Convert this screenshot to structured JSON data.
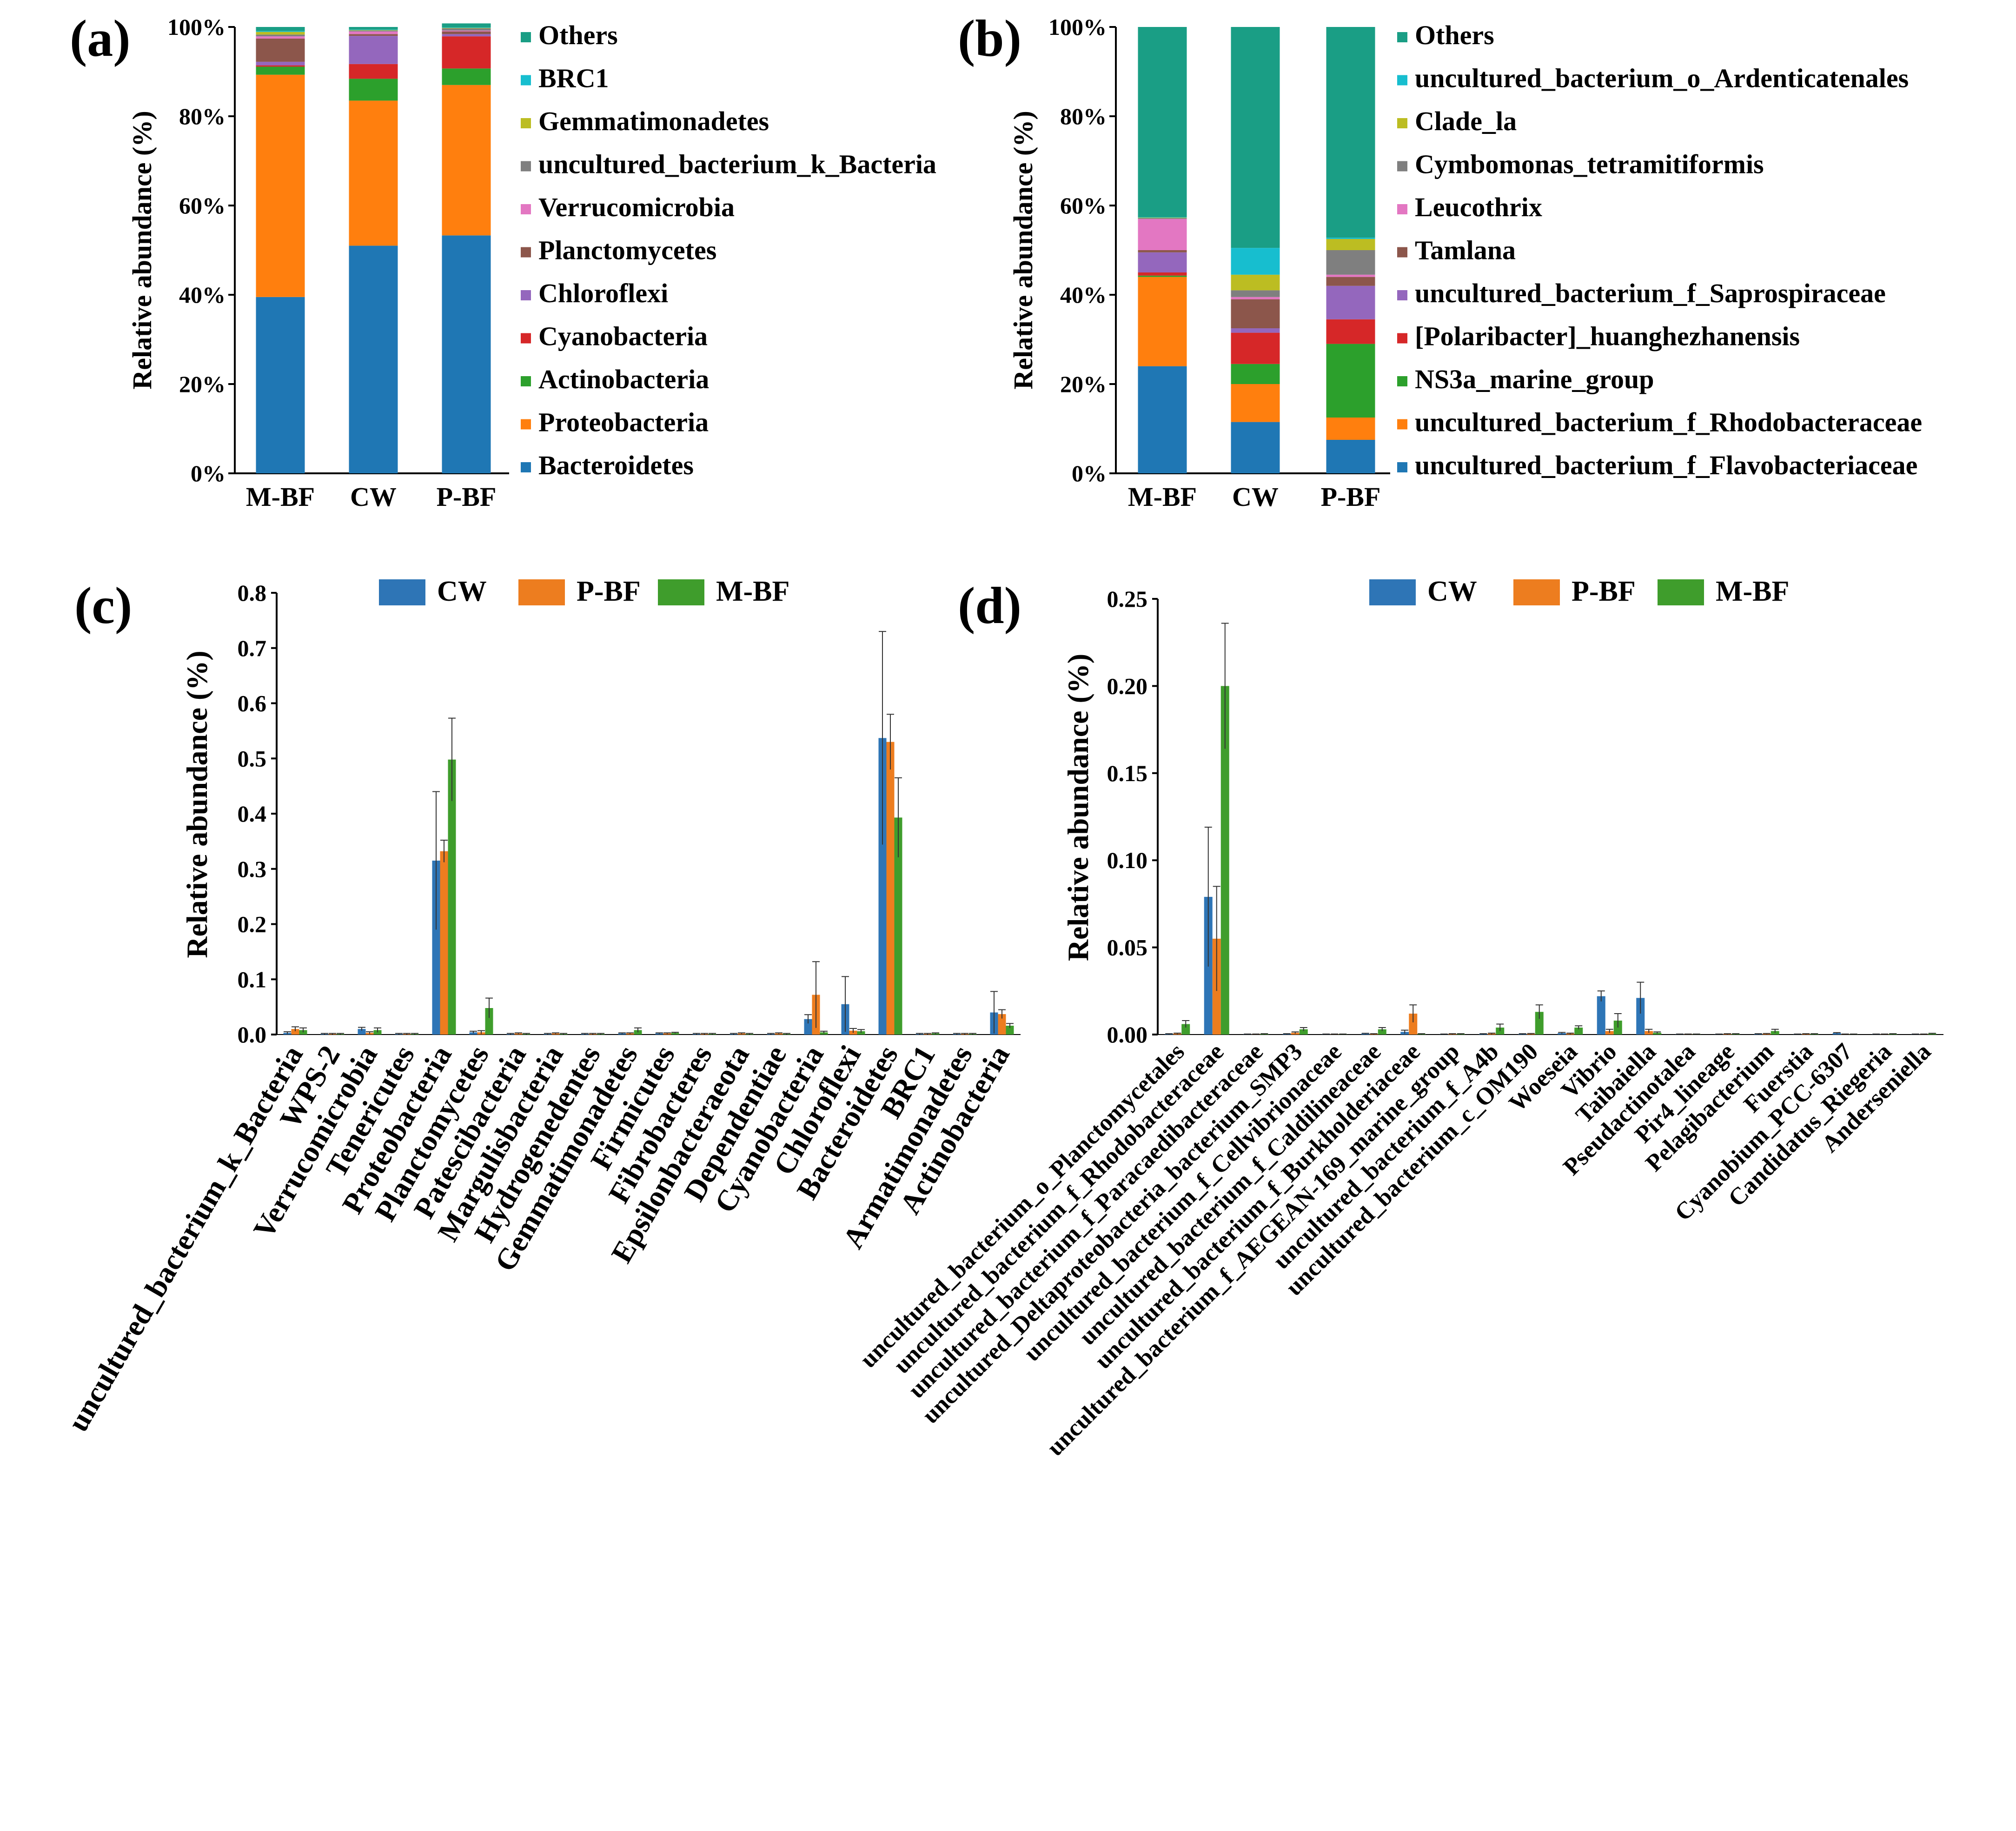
{
  "colors": {
    "Bacteroidetes": "#1f77b4",
    "Proteobacteria": "#ff7f0e",
    "Actinobacteria": "#2ca02c",
    "Cyanobacteria": "#d62728",
    "Chloroflexi": "#9467bd",
    "Planctomycetes": "#8c564b",
    "Verrucomicrobia": "#e377c2",
    "uncultured": "#7f7f7f",
    "Gemmatimonadetes": "#bcbd22",
    "BRC1": "#17becf",
    "Others": "#1a9e85",
    "CW": "#2e75b6",
    "P-BF": "#ed7d1f",
    "M-BF": "#3f9d2c"
  },
  "chart_data": [
    {
      "panel": "(a)",
      "type": "bar",
      "stacked": true,
      "categories": [
        "M-BF",
        "CW",
        "P-BF"
      ],
      "ylabel": "Relative abundance (%)",
      "yticks": [
        "0%",
        "20%",
        "40%",
        "60%",
        "80%",
        "100%"
      ],
      "ylim": [
        0,
        100
      ],
      "series": [
        {
          "name": "Bacteroidetes",
          "color_key": "Bacteroidetes",
          "values": [
            39.5,
            51.0,
            53.3
          ]
        },
        {
          "name": "Proteobacteria",
          "color_key": "Proteobacteria",
          "values": [
            49.8,
            32.5,
            33.7
          ]
        },
        {
          "name": "Actinobacteria",
          "color_key": "Actinobacteria",
          "values": [
            1.8,
            4.9,
            3.7
          ]
        },
        {
          "name": "Cyanobacteria",
          "color_key": "Cyanobacteria",
          "values": [
            0.3,
            3.3,
            7.2
          ]
        },
        {
          "name": "Chloroflexi",
          "color_key": "Chloroflexi",
          "values": [
            0.8,
            6.3,
            0.5
          ]
        },
        {
          "name": "Planctomycetes",
          "color_key": "Planctomycetes",
          "values": [
            5.2,
            0.4,
            0.6
          ]
        },
        {
          "name": "Verrucomicrobia",
          "color_key": "Verrucomicrobia",
          "values": [
            0.5,
            0.6,
            0.2
          ]
        },
        {
          "name": "uncultured_bacterium_k_Bacteria",
          "color_key": "uncultured",
          "values": [
            0.4,
            0.2,
            0.5
          ]
        },
        {
          "name": "Gemmatimonadetes",
          "color_key": "Gemmatimonadetes",
          "values": [
            0.6,
            0.1,
            0.1
          ]
        },
        {
          "name": "BRC1",
          "color_key": "BRC1",
          "values": [
            0.2,
            0.1,
            0.1
          ]
        },
        {
          "name": "Others",
          "color_key": "Others",
          "values": [
            0.9,
            0.6,
            0.9
          ]
        }
      ]
    },
    {
      "panel": "(b)",
      "type": "bar",
      "stacked": true,
      "categories": [
        "M-BF",
        "CW",
        "P-BF"
      ],
      "ylabel": "Relative abundance (%)",
      "yticks": [
        "0%",
        "20%",
        "40%",
        "60%",
        "80%",
        "100%"
      ],
      "ylim": [
        0,
        100
      ],
      "series": [
        {
          "name": "uncultured_bacterium_f_Flavobacteriaceae",
          "color_key": "Bacteroidetes",
          "values": [
            24.0,
            11.5,
            7.5
          ]
        },
        {
          "name": "uncultured_bacterium_f_Rhodobacteraceae",
          "color_key": "Proteobacteria",
          "values": [
            20.0,
            8.5,
            5.0
          ]
        },
        {
          "name": "NS3a_marine_group",
          "color_key": "Actinobacteria",
          "values": [
            0.3,
            4.5,
            16.5
          ]
        },
        {
          "name": "[Polaribacter]_huanghezhanensis",
          "color_key": "Cyanobacteria",
          "values": [
            0.7,
            7.0,
            5.5
          ]
        },
        {
          "name": "uncultured_bacterium_f_Saprospiraceae",
          "color_key": "Chloroflexi",
          "values": [
            4.5,
            1.0,
            7.5
          ]
        },
        {
          "name": "Tamlana",
          "color_key": "Planctomycetes",
          "values": [
            0.5,
            6.5,
            2.0
          ]
        },
        {
          "name": "Leucothrix",
          "color_key": "Verrucomicrobia",
          "values": [
            7.0,
            0.5,
            0.5
          ]
        },
        {
          "name": "Cymbomonas_tetramitiformis",
          "color_key": "uncultured",
          "values": [
            0.2,
            1.5,
            5.5
          ]
        },
        {
          "name": "Clade_la",
          "color_key": "Gemmatimonadetes",
          "values": [
            0.1,
            3.5,
            2.5
          ]
        },
        {
          "name": "uncultured_bacterium_o_Ardenticatenales",
          "color_key": "BRC1",
          "values": [
            0.1,
            6.0,
            0.3
          ]
        },
        {
          "name": "Others",
          "color_key": "Others",
          "values": [
            42.6,
            49.5,
            47.2
          ]
        }
      ]
    },
    {
      "panel": "(c)",
      "type": "bar",
      "stacked": false,
      "ylabel": "Relative abundance (%)",
      "ylim": [
        0,
        0.8
      ],
      "yticks": [
        "0.0",
        "0.1",
        "0.2",
        "0.3",
        "0.4",
        "0.5",
        "0.6",
        "0.7",
        "0.8"
      ],
      "legend": [
        "CW",
        "P-BF",
        "M-BF"
      ],
      "categories": [
        "uncultured_bacterium_k_Bacteria",
        "WPS-2",
        "Verrucomicrobia",
        "Tenericutes",
        "Proteobacteria",
        "Planctomycetes",
        "Patescibacteria",
        "Margulisbacteria",
        "Hydrogenedentes",
        "Gemmatimonadetes",
        "Firmicutes",
        "Fibrobacteres",
        "Epsilonbacteraeota",
        "Dependentiae",
        "Cyanobacteria",
        "Chloroflexi",
        "Bacteroidetes",
        "BRC1",
        "Armatimonadetes",
        "Actinobacteria"
      ],
      "series": [
        {
          "name": "CW",
          "values": [
            0.003,
            0.001,
            0.01,
            0.001,
            0.315,
            0.004,
            0.001,
            0.001,
            0.001,
            0.002,
            0.002,
            0.001,
            0.001,
            0.001,
            0.028,
            0.055,
            0.537,
            0.001,
            0.001,
            0.04
          ],
          "errors": [
            0.002,
            0.001,
            0.003,
            0.001,
            0.125,
            0.002,
            0.001,
            0.001,
            0.001,
            0.001,
            0.001,
            0.001,
            0.001,
            0.001,
            0.008,
            0.05,
            0.193,
            0.001,
            0.001,
            0.038
          ]
        },
        {
          "name": "P-BF",
          "values": [
            0.01,
            0.001,
            0.003,
            0.001,
            0.332,
            0.004,
            0.002,
            0.002,
            0.001,
            0.002,
            0.002,
            0.001,
            0.002,
            0.002,
            0.072,
            0.007,
            0.53,
            0.001,
            0.001,
            0.037
          ],
          "errors": [
            0.004,
            0.001,
            0.002,
            0.001,
            0.02,
            0.003,
            0.001,
            0.001,
            0.001,
            0.001,
            0.001,
            0.001,
            0.001,
            0.001,
            0.06,
            0.004,
            0.05,
            0.001,
            0.001,
            0.008
          ]
        },
        {
          "name": "M-BF",
          "values": [
            0.008,
            0.001,
            0.008,
            0.001,
            0.498,
            0.048,
            0.001,
            0.001,
            0.001,
            0.008,
            0.003,
            0.001,
            0.001,
            0.001,
            0.004,
            0.006,
            0.393,
            0.002,
            0.001,
            0.016
          ],
          "errors": [
            0.004,
            0.001,
            0.004,
            0.001,
            0.075,
            0.018,
            0.001,
            0.001,
            0.001,
            0.004,
            0.001,
            0.001,
            0.001,
            0.001,
            0.002,
            0.003,
            0.072,
            0.001,
            0.001,
            0.004
          ]
        }
      ]
    },
    {
      "panel": "(d)",
      "type": "bar",
      "stacked": false,
      "ylabel": "Relative abundance (%)",
      "ylim": [
        0,
        0.25
      ],
      "yticks": [
        "0.00",
        "0.05",
        "0.10",
        "0.15",
        "0.20",
        "0.25"
      ],
      "legend": [
        "CW",
        "P-BF",
        "M-BF"
      ],
      "categories": [
        "uncultured_bacterium_o_Planctomycetales",
        "uncultured_bacterium_f_Rhodobacteraceae",
        "uncultured_bacterium_f_Paracaedibacteraceae",
        "uncultured_Deltaproteobacteria_bacterium_SMP3",
        "uncultured_bacterium_f_Cellvibrionaceae",
        "uncultured_bacterium_f_Caldilineaceae",
        "uncultured_bacterium_f_Burkholderiaceae",
        "uncultured_bacterium_f_AEGEAN-169_marine_group",
        "uncultured_bacterium_f_A4b",
        "uncultured_bacterium_c_OM190",
        "Woeseia",
        "Vibrio",
        "Taibaiella",
        "Pseudactinotalea",
        "Pir4_lineage",
        "Pelagibacterium",
        "Fuerstia",
        "Cyanobium_PCC-6307",
        "Candidatus_Riegeria",
        "Anderseniella"
      ],
      "series": [
        {
          "name": "CW",
          "values": [
            0.0003,
            0.079,
            0.0002,
            0.0003,
            0.0002,
            0.0005,
            0.0015,
            0.0002,
            0.0003,
            0.0003,
            0.0008,
            0.022,
            0.021,
            0.0002,
            0.0002,
            0.0003,
            0.0002,
            0.0008,
            0.0002,
            0.0002
          ],
          "errors": [
            0.0002,
            0.04,
            0.0001,
            0.0002,
            0.0001,
            0.0002,
            0.001,
            0.0001,
            0.0002,
            0.0002,
            0.0004,
            0.003,
            0.009,
            0.0001,
            0.0001,
            0.0002,
            0.0001,
            0.0003,
            0.0001,
            0.0001
          ]
        },
        {
          "name": "P-BF",
          "values": [
            0.0005,
            0.055,
            0.0002,
            0.001,
            0.0002,
            0.0003,
            0.012,
            0.0003,
            0.0005,
            0.0004,
            0.0005,
            0.002,
            0.002,
            0.0002,
            0.0003,
            0.0004,
            0.0003,
            0.0002,
            0.0002,
            0.0002
          ],
          "errors": [
            0.0003,
            0.03,
            0.0001,
            0.0005,
            0.0001,
            0.0002,
            0.005,
            0.0002,
            0.0003,
            0.0002,
            0.0003,
            0.001,
            0.001,
            0.0001,
            0.0002,
            0.0002,
            0.0002,
            0.0001,
            0.0001,
            0.0001
          ]
        },
        {
          "name": "M-BF",
          "values": [
            0.006,
            0.2,
            0.0003,
            0.003,
            0.0002,
            0.003,
            0.0003,
            0.0003,
            0.004,
            0.013,
            0.004,
            0.008,
            0.001,
            0.0002,
            0.0003,
            0.002,
            0.0003,
            0.0002,
            0.0003,
            0.0005
          ],
          "errors": [
            0.002,
            0.036,
            0.0002,
            0.001,
            0.0001,
            0.001,
            0.0002,
            0.0002,
            0.002,
            0.004,
            0.001,
            0.004,
            0.0005,
            0.0001,
            0.0002,
            0.001,
            0.0002,
            0.0001,
            0.0002,
            0.0002
          ]
        }
      ]
    }
  ]
}
